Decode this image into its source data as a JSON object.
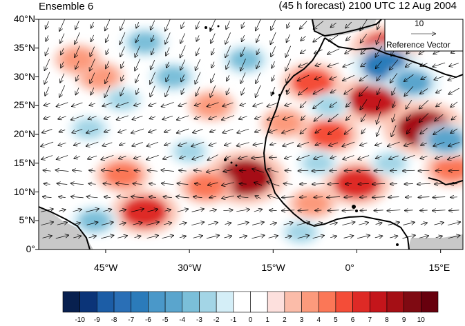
{
  "titles": {
    "left": "Ensemble 6",
    "right": "(45 h forecast) 2100 UTC 12 Aug 2004"
  },
  "map": {
    "lat_range": [
      0,
      40
    ],
    "lon_range": [
      -57,
      19
    ],
    "lat_ticks": [
      {
        "value": 40,
        "label": "40°N"
      },
      {
        "value": 35,
        "label": "35°N"
      },
      {
        "value": 30,
        "label": "30°N"
      },
      {
        "value": 25,
        "label": "25°N"
      },
      {
        "value": 20,
        "label": "20°N"
      },
      {
        "value": 15,
        "label": "15°N"
      },
      {
        "value": 10,
        "label": "10°N"
      },
      {
        "value": 5,
        "label": "5°N"
      },
      {
        "value": 0,
        "label": "0°"
      }
    ],
    "lon_ticks": [
      {
        "value": -45,
        "label": "45°W"
      },
      {
        "value": -30,
        "label": "30°W"
      },
      {
        "value": -15,
        "label": "15°W"
      },
      {
        "value": 0,
        "label": "0°"
      },
      {
        "value": 15,
        "label": "15°E"
      }
    ],
    "reference_vector": {
      "value": "10",
      "label": "Reference Vector"
    }
  },
  "colorbar": {
    "colors": [
      "#08204f",
      "#0b3478",
      "#1c5da6",
      "#2a6fb6",
      "#2b7bba",
      "#4a98c9",
      "#5aa5cd",
      "#7bbfd9",
      "#a3d5e6",
      "#d4eef7",
      "#ffffff",
      "#ffffff",
      "#fde0dd",
      "#fbbca9",
      "#fc9a7c",
      "#fb7757",
      "#f44d38",
      "#de2a26",
      "#c4151b",
      "#a50f15",
      "#7f0a12",
      "#67000d"
    ],
    "labels": [
      "-10",
      "-9",
      "-8",
      "-7",
      "-6",
      "-5",
      "-4",
      "-3",
      "-2",
      "-1",
      "0",
      "1",
      "2",
      "3",
      "4",
      "5",
      "6",
      "7",
      "8",
      "9",
      "10"
    ]
  },
  "chart_data": {
    "type": "heatmap",
    "description_field": "Perturbation shading with wind vectors over the tropical Atlantic and West Africa",
    "shading_blobs": [
      {
        "lon": -20,
        "lat": 12.5,
        "value": 8
      },
      {
        "lon": -38,
        "lat": 6.5,
        "value": 6
      },
      {
        "lon": 0,
        "lat": 11.5,
        "value": 6
      },
      {
        "lon": 3,
        "lat": 26,
        "value": 7
      },
      {
        "lon": 12,
        "lat": 21,
        "value": 8
      },
      {
        "lon": 5,
        "lat": 35,
        "value": 6
      },
      {
        "lon": -8,
        "lat": 29,
        "value": 5
      },
      {
        "lon": -27,
        "lat": 11,
        "value": 4
      },
      {
        "lon": -42,
        "lat": 13,
        "value": 4
      },
      {
        "lon": -46,
        "lat": 30,
        "value": 3
      },
      {
        "lon": -26,
        "lat": 25,
        "value": 3
      },
      {
        "lon": -13,
        "lat": 22,
        "value": 3
      },
      {
        "lon": -5,
        "lat": 20,
        "value": 5
      },
      {
        "lon": 17,
        "lat": 14,
        "value": 4
      },
      {
        "lon": -50,
        "lat": 33,
        "value": 3
      },
      {
        "lon": -8,
        "lat": 8,
        "value": 3
      },
      {
        "lon": 5,
        "lat": 32,
        "value": -6
      },
      {
        "lon": 10,
        "lat": 29,
        "value": -4
      },
      {
        "lon": 16,
        "lat": 19,
        "value": -4
      },
      {
        "lon": -47,
        "lat": 5,
        "value": -3
      },
      {
        "lon": -33,
        "lat": 30,
        "value": -3
      },
      {
        "lon": -20,
        "lat": 33,
        "value": -3
      },
      {
        "lon": -38,
        "lat": 36,
        "value": -3
      },
      {
        "lon": -30,
        "lat": 17,
        "value": -2
      },
      {
        "lon": -48,
        "lat": 21,
        "value": -2
      },
      {
        "lon": -5,
        "lat": 25,
        "value": -2
      },
      {
        "lon": -7,
        "lat": 15,
        "value": -2
      },
      {
        "lon": 6,
        "lat": 15,
        "value": -2
      },
      {
        "lon": -42,
        "lat": 26,
        "value": -2
      },
      {
        "lon": -10,
        "lat": 3,
        "value": -2
      }
    ]
  }
}
